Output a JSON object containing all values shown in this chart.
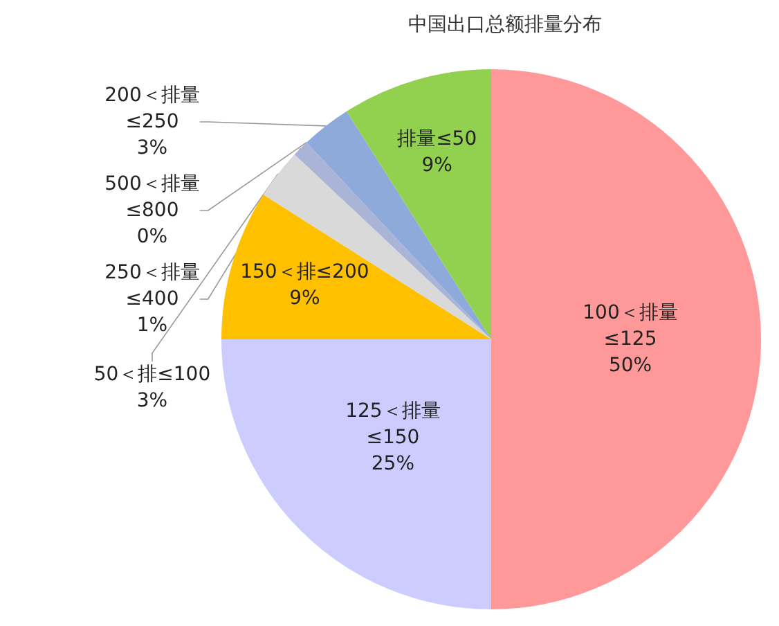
{
  "chart_data": {
    "type": "pie",
    "title": "中国出口总额排量分布",
    "categories": [
      "100＜排量≤125",
      "125＜排量≤150",
      "150＜排≤200",
      "50＜排≤100",
      "250＜排量≤400",
      "500＜排量≤800",
      "200＜排量≤250",
      "排量≤50"
    ],
    "values": [
      50,
      25,
      9,
      3,
      1,
      0,
      3,
      9
    ],
    "value_labels": [
      "50%",
      "25%",
      "9%",
      "3%",
      "1%",
      "0%",
      "3%",
      "9%"
    ],
    "colors": [
      "#ff9999",
      "#ccccff",
      "#ffc000",
      "#d9d9d9",
      "#a9b4d6",
      "#1f4e79",
      "#8eaadb",
      "#92d050"
    ]
  }
}
